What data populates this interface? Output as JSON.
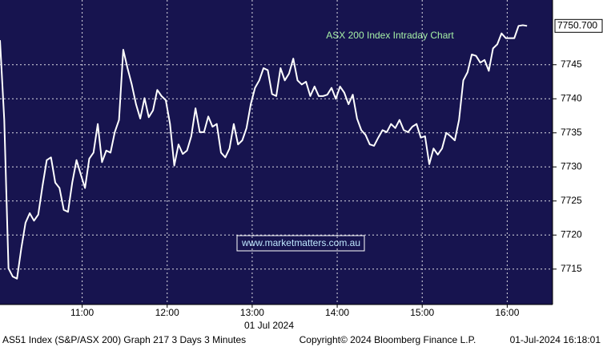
{
  "chart_data": {
    "type": "line",
    "title": "ASX 200 Index Intraday Chart",
    "color": "#ffffff",
    "x": [
      602,
      605,
      608,
      611,
      614,
      617,
      620,
      623,
      626,
      629,
      632,
      635,
      638,
      641,
      644,
      647,
      650,
      653,
      656,
      659,
      662,
      665,
      668,
      671,
      674,
      677,
      680,
      683,
      686,
      689,
      692,
      695,
      698,
      701,
      704,
      707,
      710,
      713,
      716,
      719,
      722,
      725,
      728,
      731,
      734,
      737,
      740,
      743,
      746,
      749,
      752,
      755,
      758,
      761,
      764,
      767,
      770,
      773,
      776,
      779,
      782,
      785,
      788,
      791,
      794,
      797,
      800,
      803,
      806,
      809,
      812,
      815,
      818,
      821,
      824,
      827,
      830,
      833,
      836,
      839,
      842,
      845,
      848,
      851,
      854,
      857,
      860,
      863,
      866,
      869,
      872,
      875,
      878,
      881,
      884,
      887,
      890,
      893,
      896,
      899,
      902,
      905,
      908,
      911,
      914,
      917,
      920,
      923,
      926,
      929,
      932,
      935,
      938,
      941,
      944,
      947,
      950,
      953,
      956,
      959,
      962,
      965,
      968,
      971,
      974
    ],
    "values": [
      7748.6,
      7736.9,
      7715.1,
      7713.9,
      7713.6,
      7718.0,
      7721.8,
      7723.2,
      7722.1,
      7723.0,
      7727.2,
      7731.0,
      7731.4,
      7727.7,
      7726.9,
      7723.7,
      7723.4,
      7727.7,
      7731.0,
      7728.9,
      7726.9,
      7731.2,
      7732.1,
      7736.3,
      7730.7,
      7732.4,
      7732.1,
      7735.1,
      7736.9,
      7747.2,
      7744.5,
      7742.1,
      7739.2,
      7737.1,
      7740.1,
      7737.3,
      7738.3,
      7741.3,
      7740.4,
      7739.8,
      7736.3,
      7730.2,
      7733.3,
      7731.9,
      7732.4,
      7734.5,
      7738.6,
      7735.1,
      7735.1,
      7737.4,
      7735.9,
      7736.3,
      7732.1,
      7731.4,
      7732.7,
      7736.3,
      7733.3,
      7733.9,
      7735.7,
      7739.2,
      7741.6,
      7742.7,
      7744.5,
      7744.2,
      7740.7,
      7740.4,
      7744.5,
      7742.7,
      7743.7,
      7745.9,
      7742.7,
      7742.1,
      7742.5,
      7740.4,
      7741.8,
      7740.4,
      7740.4,
      7740.6,
      7741.6,
      7740.0,
      7741.8,
      7740.9,
      7739.2,
      7740.6,
      7737.1,
      7735.4,
      7734.7,
      7733.3,
      7733.1,
      7734.3,
      7735.4,
      7735.1,
      7736.3,
      7735.7,
      7736.9,
      7735.4,
      7735.1,
      7735.9,
      7736.3,
      7734.3,
      7734.5,
      7730.4,
      7732.7,
      7731.8,
      7732.7,
      7735.0,
      7734.5,
      7733.9,
      7736.9,
      7742.7,
      7743.9,
      7746.5,
      7746.3,
      7745.3,
      7745.7,
      7744.1,
      7747.4,
      7748.0,
      7749.6,
      7748.9,
      7748.9,
      7748.9,
      7750.7,
      7750.8,
      7750.7
    ],
    "xlim": [
      602,
      992
    ],
    "xticks": [
      {
        "value": 660,
        "label": "11:00"
      },
      {
        "value": 720,
        "label": "12:00"
      },
      {
        "value": 780,
        "label": "13:00"
      },
      {
        "value": 840,
        "label": "14:00"
      },
      {
        "value": 900,
        "label": "15:00"
      },
      {
        "value": 960,
        "label": "16:00"
      }
    ],
    "ylim": [
      7709.8,
      7754.5
    ],
    "yticks": [
      7715,
      7720,
      7725,
      7730,
      7735,
      7740,
      7745
    ],
    "grid": true,
    "date_label": "01 Jul 2024",
    "last_price": {
      "value": 7750.7,
      "label": "7750.700"
    }
  },
  "watermark": "www.marketmatters.com.au",
  "footer": {
    "left": "AS51 Index (S&P/ASX 200) Graph 217 3 Days 3 Minutes",
    "center": "Copyright© 2024 Bloomberg Finance L.P.",
    "right": "01-Jul-2024 16:18:01"
  }
}
